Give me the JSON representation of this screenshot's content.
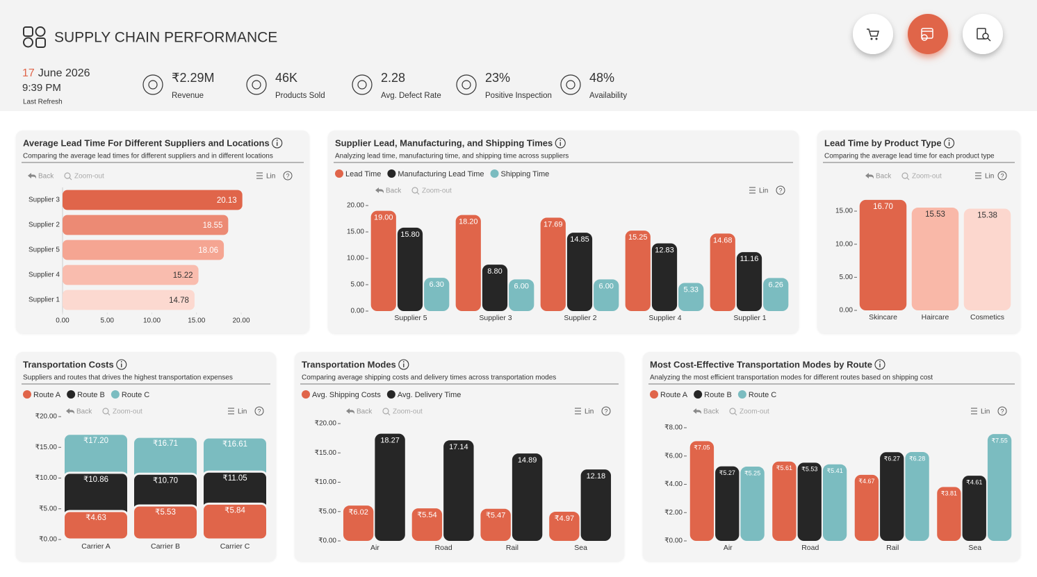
{
  "header": {
    "title": "SUPPLY CHAIN PERFORMANCE",
    "refresh": {
      "day": "17",
      "month_year": "June 2026",
      "time": "9:39 PM",
      "label": "Last Refresh"
    },
    "kpis": [
      {
        "value": "₹2.29M",
        "label": "Revenue"
      },
      {
        "value": "46K",
        "label": "Products Sold"
      },
      {
        "value": "2.28",
        "label": "Avg. Defect Rate"
      },
      {
        "value": "23%",
        "label": "Positive Inspection"
      },
      {
        "value": "48%",
        "label": "Availability"
      }
    ]
  },
  "chart_data": [
    {
      "type": "hbar",
      "title": "Average Lead Time For Different Suppliers and Locations",
      "subtitle": "Comparing the average lead times for different suppliers and in different locations",
      "toolbar": {
        "back": "Back",
        "zoom": "Zoom-out",
        "scale": "Lin",
        "help": "?"
      },
      "categories": [
        "Supplier 3",
        "Supplier 2",
        "Supplier 5",
        "Supplier 4",
        "Supplier 1"
      ],
      "values": [
        20.13,
        18.55,
        18.06,
        15.22,
        14.78
      ],
      "colors": [
        "#e0654a",
        "#ec8a74",
        "#f5a592",
        "#f9bcae",
        "#fcd9d0"
      ],
      "xlim": [
        0,
        20
      ],
      "xticks": [
        {
          "value": 0,
          "label": "0.00"
        },
        {
          "value": 5,
          "label": "5.00"
        },
        {
          "value": 10,
          "label": "10.00"
        },
        {
          "value": 15,
          "label": "15.00"
        },
        {
          "value": 20,
          "label": "20.00"
        }
      ]
    },
    {
      "type": "grouped",
      "title": "Supplier Lead, Manufacturing, and Shipping Times",
      "subtitle": "Analyzing lead time, manufacturing time, and shipping time across suppliers",
      "toolbar": {
        "back": "Back",
        "zoom": "Zoom-out",
        "scale": "Lin",
        "help": "?"
      },
      "categories": [
        "Supplier 5",
        "Supplier 3",
        "Supplier 2",
        "Supplier 4",
        "Supplier 1"
      ],
      "series": [
        {
          "name": "Lead Time",
          "color": "#e0654a",
          "values": [
            19.0,
            18.2,
            17.69,
            15.25,
            14.68
          ],
          "value_labels": [
            "19.00",
            "18.20",
            "17.69",
            "15.25",
            "14.68"
          ]
        },
        {
          "name": "Manufacturing Lead Time",
          "color": "#262626",
          "values": [
            15.8,
            8.8,
            14.85,
            12.83,
            11.16
          ],
          "value_labels": [
            "15.80",
            "8.80",
            "14.85",
            "12.83",
            "11.16"
          ]
        },
        {
          "name": "Shipping Time",
          "color": "#7bbcc0",
          "values": [
            6.3,
            6.0,
            6.0,
            5.33,
            6.26
          ],
          "value_labels": [
            "6.30",
            "6.00",
            "6.00",
            "5.33",
            "6.26"
          ]
        }
      ],
      "ylim": [
        0,
        20
      ],
      "yticks": [
        {
          "value": 0,
          "label": "0.00"
        },
        {
          "value": 5,
          "label": "5.00"
        },
        {
          "value": 10,
          "label": "10.00"
        },
        {
          "value": 15,
          "label": "15.00"
        },
        {
          "value": 20,
          "label": "20.00"
        }
      ]
    },
    {
      "type": "vbar",
      "title": "Lead Time by Product Type",
      "subtitle": "Comparing the average lead time for each product type",
      "toolbar": {
        "back": "Back",
        "zoom": "Zoom-out",
        "scale": "Lin",
        "help": "?"
      },
      "categories": [
        "Skincare",
        "Haircare",
        "Cosmetics"
      ],
      "values": [
        16.7,
        15.53,
        15.38
      ],
      "value_labels": [
        "16.70",
        "15.53",
        "15.38"
      ],
      "colors": [
        "#e0654a",
        "#f9b8a8",
        "#fcd7ce"
      ],
      "ylim": [
        0,
        17
      ],
      "yticks": [
        {
          "value": 0,
          "label": "0.00"
        },
        {
          "value": 5,
          "label": "5.00"
        },
        {
          "value": 10,
          "label": "10.00"
        },
        {
          "value": 15,
          "label": "15.00"
        }
      ]
    },
    {
      "type": "overlap",
      "title": "Transportation Costs",
      "subtitle": "Suppliers and routes that drives the highest transportation expenses",
      "toolbar": {
        "back": "Back",
        "zoom": "Zoom-out",
        "scale": "Lin",
        "help": "?"
      },
      "categories": [
        "Carrier A",
        "Carrier B",
        "Carrier C"
      ],
      "series": [
        {
          "name": "Route A",
          "color": "#e0654a",
          "values": [
            4.63,
            5.53,
            5.84
          ],
          "value_labels": [
            "₹4.63",
            "₹5.53",
            "₹5.84"
          ]
        },
        {
          "name": "Route B",
          "color": "#262626",
          "values": [
            10.86,
            10.7,
            11.05
          ],
          "value_labels": [
            "₹10.86",
            "₹10.70",
            "₹11.05"
          ]
        },
        {
          "name": "Route C",
          "color": "#7bbcc0",
          "values": [
            17.2,
            16.71,
            16.61
          ],
          "value_labels": [
            "₹17.20",
            "₹16.71",
            "₹16.61"
          ]
        }
      ],
      "ylim": [
        0,
        20
      ],
      "yticks": [
        {
          "value": 0,
          "label": "₹0.00"
        },
        {
          "value": 5,
          "label": "₹5.00"
        },
        {
          "value": 10,
          "label": "₹10.00"
        },
        {
          "value": 15,
          "label": "₹15.00"
        },
        {
          "value": 20,
          "label": "₹20.00"
        }
      ]
    },
    {
      "type": "grouped",
      "title": "Transportation Modes",
      "subtitle": "Comparing average shipping costs and delivery times across transportation modes",
      "toolbar": {
        "back": "Back",
        "zoom": "Zoom-out",
        "scale": "Lin",
        "help": "?"
      },
      "categories": [
        "Air",
        "Road",
        "Rail",
        "Sea"
      ],
      "series": [
        {
          "name": "Avg. Shipping Costs",
          "color": "#e0654a",
          "values": [
            6.02,
            5.54,
            5.47,
            4.97
          ],
          "value_labels": [
            "₹6.02",
            "₹5.54",
            "₹5.47",
            "₹4.97"
          ]
        },
        {
          "name": "Avg. Delivery Time",
          "color": "#262626",
          "values": [
            18.27,
            17.14,
            14.89,
            12.18
          ]
        }
      ],
      "ylim": [
        0,
        20
      ],
      "yticks": [
        {
          "value": 0,
          "label": "₹0.00"
        },
        {
          "value": 5,
          "label": "₹5.00"
        },
        {
          "value": 10,
          "label": "₹10.00"
        },
        {
          "value": 15,
          "label": "₹15.00"
        },
        {
          "value": 20,
          "label": "₹20.00"
        }
      ]
    },
    {
      "type": "grouped",
      "title": "Most Cost-Effective Transportation Modes by Route",
      "subtitle": "Analyzing the most efficient transportation modes for different routes based on shipping cost",
      "toolbar": {
        "back": "Back",
        "zoom": "Zoom-out",
        "scale": "Lin",
        "help": "?"
      },
      "categories": [
        "Air",
        "Road",
        "Rail",
        "Sea"
      ],
      "series": [
        {
          "name": "Route A",
          "color": "#e0654a",
          "values": [
            7.05,
            5.61,
            4.67,
            3.81
          ],
          "value_labels": [
            "₹7.05",
            "₹5.61",
            "₹4.67",
            "₹3.81"
          ]
        },
        {
          "name": "Route B",
          "color": "#262626",
          "values": [
            5.27,
            5.53,
            6.27,
            4.61
          ],
          "value_labels": [
            "₹5.27",
            "₹5.53",
            "₹6.27",
            "₹4.61"
          ]
        },
        {
          "name": "Route C",
          "color": "#7bbcc0",
          "values": [
            5.25,
            5.41,
            6.28,
            7.55
          ],
          "value_labels": [
            "₹5.25",
            "₹5.41",
            "₹6.28",
            "₹7.55"
          ]
        }
      ],
      "ylim": [
        0,
        8
      ],
      "yticks": [
        {
          "value": 0,
          "label": "₹0.00"
        },
        {
          "value": 2,
          "label": "₹2.00"
        },
        {
          "value": 4,
          "label": "₹4.00"
        },
        {
          "value": 6,
          "label": "₹6.00"
        },
        {
          "value": 8,
          "label": "₹8.00"
        }
      ]
    }
  ]
}
